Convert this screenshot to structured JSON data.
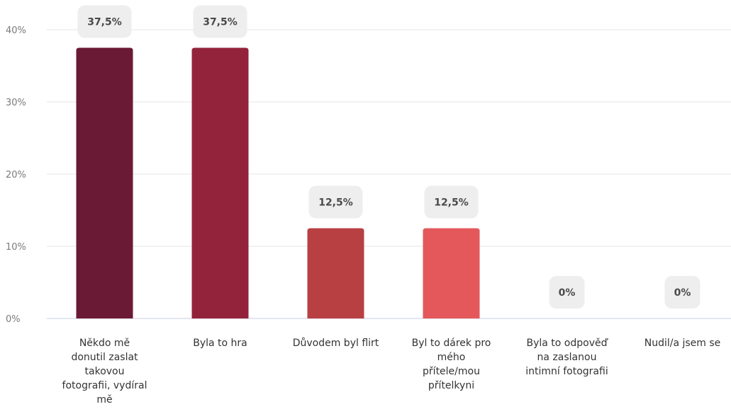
{
  "chart_data": {
    "type": "bar",
    "categories": [
      "Někdo mě donutil zaslat takovou fotografii, vydíral mě",
      "Byla to hra",
      "Důvodem byl flirt",
      "Byl to dárek pro mého přítele/mou přítelkyni",
      "Byla to odpověď na zaslanou intimní fotografii",
      "Nudil/a jsem se"
    ],
    "category_lines": [
      [
        "Někdo mě",
        "donutil zaslat",
        "takovou",
        "fotografii, vydíral",
        "mě"
      ],
      [
        "Byla to hra"
      ],
      [
        "Důvodem byl flirt"
      ],
      [
        "Byl to dárek pro",
        "mého",
        "přítele/mou",
        "přítelkyni"
      ],
      [
        "Byla to odpověď",
        "na zaslanou",
        "intimní fotografii"
      ],
      [
        "Nudil/a jsem se"
      ]
    ],
    "values": [
      37.5,
      37.5,
      12.5,
      12.5,
      0,
      0
    ],
    "value_labels": [
      "37,5%",
      "37,5%",
      "12,5%",
      "12,5%",
      "0%",
      "0%"
    ],
    "colors": [
      "#6b1a35",
      "#93233b",
      "#b84042",
      "#e4585b",
      "#e4585b",
      "#e4585b"
    ],
    "yticks": [
      "0%",
      "10%",
      "20%",
      "30%",
      "40%"
    ],
    "ytick_values": [
      0,
      10,
      20,
      30,
      40
    ],
    "ylim": [
      0,
      40
    ],
    "grid": true
  }
}
